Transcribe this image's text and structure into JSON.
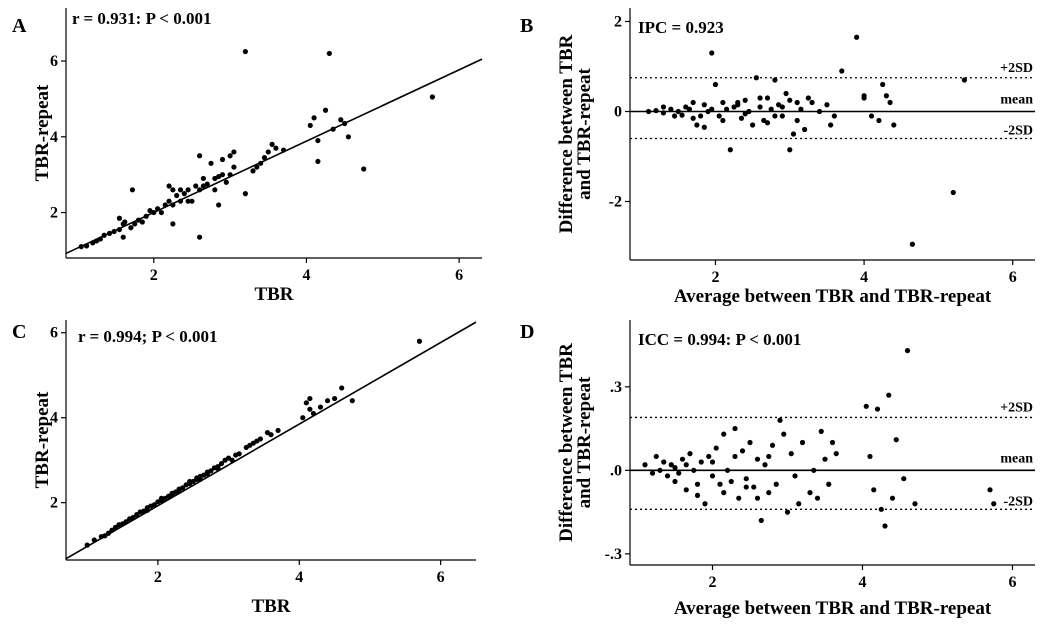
{
  "chart_data": [
    {
      "type": "scatter",
      "panel": "A",
      "annotation": "r = 0.931: P < 0.001",
      "xlabel": "TBR",
      "ylabel": "TBR-repeat",
      "xlim": [
        0.85,
        6.3
      ],
      "ylim": [
        0.8,
        7.4
      ],
      "xticks": [
        {
          "v": 2,
          "label": "2"
        },
        {
          "v": 4,
          "label": "4"
        },
        {
          "v": 6,
          "label": "6"
        }
      ],
      "yticks": [
        {
          "v": 2,
          "label": "2"
        },
        {
          "v": 4,
          "label": "4"
        },
        {
          "v": 6,
          "label": "6"
        }
      ],
      "reference_lines": [
        {
          "type": "fit",
          "x": [
            0.85,
            6.3
          ],
          "y": [
            0.92,
            6.05
          ]
        }
      ],
      "points": [
        [
          1.05,
          1.1
        ],
        [
          1.12,
          1.12
        ],
        [
          1.2,
          1.2
        ],
        [
          1.25,
          1.25
        ],
        [
          1.3,
          1.3
        ],
        [
          1.35,
          1.4
        ],
        [
          1.42,
          1.45
        ],
        [
          1.48,
          1.5
        ],
        [
          1.55,
          1.55
        ],
        [
          1.6,
          1.7
        ],
        [
          1.55,
          1.85
        ],
        [
          1.62,
          1.75
        ],
        [
          1.6,
          1.35
        ],
        [
          1.7,
          1.6
        ],
        [
          1.75,
          1.7
        ],
        [
          1.72,
          2.6
        ],
        [
          1.8,
          1.8
        ],
        [
          1.85,
          1.75
        ],
        [
          1.9,
          1.9
        ],
        [
          1.95,
          2.05
        ],
        [
          2.0,
          2.0
        ],
        [
          2.05,
          2.1
        ],
        [
          2.1,
          2.0
        ],
        [
          2.15,
          2.2
        ],
        [
          2.2,
          2.3
        ],
        [
          2.25,
          2.2
        ],
        [
          2.25,
          2.6
        ],
        [
          2.3,
          2.45
        ],
        [
          2.35,
          2.3
        ],
        [
          2.4,
          2.5
        ],
        [
          2.45,
          2.6
        ],
        [
          2.45,
          2.3
        ],
        [
          2.5,
          2.3
        ],
        [
          2.55,
          2.7
        ],
        [
          2.6,
          2.6
        ],
        [
          2.6,
          3.5
        ],
        [
          2.65,
          2.7
        ],
        [
          2.65,
          2.9
        ],
        [
          2.7,
          2.75
        ],
        [
          2.75,
          3.3
        ],
        [
          2.8,
          2.9
        ],
        [
          2.85,
          2.95
        ],
        [
          2.9,
          3.0
        ],
        [
          2.9,
          3.4
        ],
        [
          2.95,
          2.8
        ],
        [
          3.0,
          3.0
        ],
        [
          3.05,
          3.2
        ],
        [
          3.05,
          3.6
        ],
        [
          2.85,
          2.2
        ],
        [
          2.8,
          2.6
        ],
        [
          2.6,
          1.35
        ],
        [
          2.25,
          1.7
        ],
        [
          3.2,
          6.25
        ],
        [
          3.2,
          2.5
        ],
        [
          3.3,
          3.1
        ],
        [
          3.35,
          3.2
        ],
        [
          3.4,
          3.3
        ],
        [
          3.5,
          3.6
        ],
        [
          3.55,
          3.8
        ],
        [
          3.45,
          3.45
        ],
        [
          3.6,
          3.7
        ],
        [
          3.7,
          3.65
        ],
        [
          2.2,
          2.7
        ],
        [
          2.35,
          2.6
        ],
        [
          3.0,
          3.5
        ],
        [
          4.05,
          4.3
        ],
        [
          4.1,
          4.5
        ],
        [
          4.15,
          3.9
        ],
        [
          4.15,
          3.35
        ],
        [
          4.25,
          4.7
        ],
        [
          4.3,
          6.2
        ],
        [
          4.35,
          4.2
        ],
        [
          4.45,
          4.45
        ],
        [
          4.5,
          4.35
        ],
        [
          4.55,
          4.0
        ],
        [
          4.75,
          3.15
        ],
        [
          5.65,
          5.05
        ]
      ]
    },
    {
      "type": "scatter",
      "panel": "B",
      "annotation": "IPC = 0.923",
      "xlabel": "Average between TBR and TBR-repeat",
      "ylabel_lines": [
        "Difference between TBR",
        "and TBR-repeat"
      ],
      "xlim": [
        0.85,
        6.3
      ],
      "ylim": [
        -3.3,
        2.3
      ],
      "xticks": [
        {
          "v": 2,
          "label": "2"
        },
        {
          "v": 4,
          "label": "4"
        },
        {
          "v": 6,
          "label": "6"
        }
      ],
      "yticks": [
        {
          "v": 2,
          "label": "2"
        },
        {
          "v": 0,
          "label": "0"
        },
        {
          "v": -2,
          "label": "-2"
        }
      ],
      "reference_lines": [
        {
          "type": "dotted",
          "y": 0.75,
          "label": "+2SD"
        },
        {
          "type": "solid",
          "y": 0,
          "label": "mean"
        },
        {
          "type": "dotted",
          "y": -0.6,
          "label": "-2SD"
        }
      ],
      "points": [
        [
          1.1,
          0.0
        ],
        [
          1.2,
          0.02
        ],
        [
          1.3,
          -0.03
        ],
        [
          1.4,
          0.05
        ],
        [
          1.5,
          0.0
        ],
        [
          1.55,
          -0.08
        ],
        [
          1.6,
          0.1
        ],
        [
          1.65,
          0.05
        ],
        [
          1.7,
          0.2
        ],
        [
          1.75,
          -0.3
        ],
        [
          1.8,
          -0.1
        ],
        [
          1.85,
          0.15
        ],
        [
          1.9,
          0.0
        ],
        [
          1.95,
          1.3
        ],
        [
          1.95,
          0.05
        ],
        [
          2.0,
          0.6
        ],
        [
          2.05,
          -0.1
        ],
        [
          2.1,
          0.2
        ],
        [
          2.15,
          0.05
        ],
        [
          2.2,
          -0.85
        ],
        [
          2.25,
          0.1
        ],
        [
          2.3,
          0.2
        ],
        [
          2.35,
          -0.15
        ],
        [
          2.4,
          0.25
        ],
        [
          2.45,
          0.0
        ],
        [
          2.5,
          -0.3
        ],
        [
          2.55,
          0.75
        ],
        [
          2.6,
          0.1
        ],
        [
          2.65,
          -0.2
        ],
        [
          2.7,
          0.3
        ],
        [
          2.75,
          0.05
        ],
        [
          2.8,
          0.7
        ],
        [
          2.85,
          0.15
        ],
        [
          2.9,
          -0.1
        ],
        [
          2.95,
          0.4
        ],
        [
          3.0,
          -0.85
        ],
        [
          3.05,
          -0.5
        ],
        [
          3.1,
          0.2
        ],
        [
          3.15,
          0.05
        ],
        [
          3.2,
          -0.4
        ],
        [
          3.25,
          0.3
        ],
        [
          3.3,
          0.2
        ],
        [
          3.4,
          0.0
        ],
        [
          3.5,
          0.15
        ],
        [
          3.55,
          -0.3
        ],
        [
          3.6,
          -0.1
        ],
        [
          3.7,
          0.9
        ],
        [
          3.9,
          1.65
        ],
        [
          4.0,
          0.35
        ],
        [
          4.0,
          0.3
        ],
        [
          4.1,
          -0.1
        ],
        [
          4.2,
          -0.2
        ],
        [
          4.25,
          0.6
        ],
        [
          4.3,
          0.35
        ],
        [
          4.35,
          0.2
        ],
        [
          4.4,
          -0.3
        ],
        [
          4.65,
          -2.95
        ],
        [
          5.2,
          -1.8
        ],
        [
          5.35,
          0.7
        ],
        [
          1.3,
          0.1
        ],
        [
          1.45,
          -0.1
        ],
        [
          1.7,
          -0.15
        ],
        [
          1.85,
          -0.35
        ],
        [
          2.1,
          -0.2
        ],
        [
          2.3,
          0.15
        ],
        [
          2.4,
          -0.05
        ],
        [
          2.6,
          0.3
        ],
        [
          2.7,
          -0.25
        ],
        [
          2.8,
          -0.1
        ],
        [
          2.9,
          0.1
        ],
        [
          3.0,
          0.25
        ],
        [
          3.1,
          -0.2
        ]
      ]
    },
    {
      "type": "scatter",
      "panel": "C",
      "annotation": "r = 0.994; P < 0.001",
      "xlabel": "TBR",
      "ylabel": "TBR-repeat",
      "xlim": [
        0.7,
        6.5
      ],
      "ylim": [
        0.65,
        6.3
      ],
      "xticks": [
        {
          "v": 2,
          "label": "2"
        },
        {
          "v": 4,
          "label": "4"
        },
        {
          "v": 6,
          "label": "6"
        }
      ],
      "yticks": [
        {
          "v": 2,
          "label": "2"
        },
        {
          "v": 4,
          "label": "4"
        },
        {
          "v": 6,
          "label": "6"
        }
      ],
      "reference_lines": [
        {
          "type": "fit",
          "x": [
            0.7,
            6.5
          ],
          "y": [
            0.68,
            6.25
          ]
        }
      ],
      "points": [
        [
          1.0,
          1.0
        ],
        [
          1.1,
          1.12
        ],
        [
          1.2,
          1.2
        ],
        [
          1.3,
          1.28
        ],
        [
          1.35,
          1.35
        ],
        [
          1.4,
          1.42
        ],
        [
          1.5,
          1.5
        ],
        [
          1.55,
          1.55
        ],
        [
          1.6,
          1.62
        ],
        [
          1.65,
          1.65
        ],
        [
          1.7,
          1.72
        ],
        [
          1.75,
          1.78
        ],
        [
          1.8,
          1.8
        ],
        [
          1.85,
          1.88
        ],
        [
          1.9,
          1.92
        ],
        [
          1.95,
          1.95
        ],
        [
          2.0,
          2.02
        ],
        [
          2.05,
          2.05
        ],
        [
          2.1,
          2.1
        ],
        [
          2.15,
          2.15
        ],
        [
          2.2,
          2.22
        ],
        [
          2.25,
          2.25
        ],
        [
          2.3,
          2.28
        ],
        [
          2.35,
          2.35
        ],
        [
          2.4,
          2.42
        ],
        [
          2.45,
          2.45
        ],
        [
          2.5,
          2.5
        ],
        [
          2.55,
          2.55
        ],
        [
          2.6,
          2.62
        ],
        [
          2.65,
          2.65
        ],
        [
          2.7,
          2.72
        ],
        [
          2.75,
          2.75
        ],
        [
          2.8,
          2.82
        ],
        [
          2.85,
          2.85
        ],
        [
          2.9,
          2.92
        ],
        [
          2.95,
          3.0
        ],
        [
          3.0,
          3.05
        ],
        [
          3.05,
          3.0
        ],
        [
          3.15,
          3.15
        ],
        [
          3.25,
          3.3
        ],
        [
          3.3,
          3.35
        ],
        [
          3.4,
          3.45
        ],
        [
          3.45,
          3.5
        ],
        [
          3.55,
          3.65
        ],
        [
          3.6,
          3.6
        ],
        [
          3.7,
          3.7
        ],
        [
          4.05,
          4.0
        ],
        [
          4.1,
          4.35
        ],
        [
          4.15,
          4.2
        ],
        [
          4.2,
          4.1
        ],
        [
          4.3,
          4.25
        ],
        [
          4.4,
          4.4
        ],
        [
          4.5,
          4.45
        ],
        [
          4.6,
          4.7
        ],
        [
          4.75,
          4.4
        ],
        [
          5.7,
          5.8
        ],
        [
          1.25,
          1.22
        ],
        [
          1.45,
          1.48
        ],
        [
          1.85,
          1.82
        ],
        [
          2.05,
          2.1
        ],
        [
          2.2,
          2.18
        ],
        [
          2.3,
          2.32
        ],
        [
          2.45,
          2.5
        ],
        [
          2.55,
          2.58
        ],
        [
          2.6,
          2.55
        ],
        [
          2.7,
          2.68
        ],
        [
          2.85,
          2.8
        ],
        [
          3.1,
          3.12
        ],
        [
          3.35,
          3.4
        ],
        [
          4.15,
          4.45
        ]
      ]
    },
    {
      "type": "scatter",
      "panel": "D",
      "annotation": "ICC = 0.994: P < 0.001",
      "xlabel": "Average between TBR and TBR-repeat",
      "ylabel_lines": [
        "Difference between TBR",
        "and TBR-repeat"
      ],
      "xlim": [
        0.9,
        6.3
      ],
      "ylim": [
        -0.34,
        0.54
      ],
      "xticks": [
        {
          "v": 2,
          "label": "2"
        },
        {
          "v": 4,
          "label": "4"
        },
        {
          "v": 6,
          "label": "6"
        }
      ],
      "yticks": [
        {
          "v": 0.3,
          "label": ".3"
        },
        {
          "v": 0.0,
          "label": ".0"
        },
        {
          "v": -0.3,
          "label": "-.3"
        }
      ],
      "reference_lines": [
        {
          "type": "dotted",
          "y": 0.19,
          "label": "+2SD"
        },
        {
          "type": "solid",
          "y": 0,
          "label": "mean"
        },
        {
          "type": "dotted",
          "y": -0.14,
          "label": "-2SD"
        }
      ],
      "points": [
        [
          1.1,
          0.02
        ],
        [
          1.2,
          -0.01
        ],
        [
          1.25,
          0.05
        ],
        [
          1.3,
          0.0
        ],
        [
          1.35,
          0.03
        ],
        [
          1.4,
          -0.02
        ],
        [
          1.45,
          0.02
        ],
        [
          1.5,
          -0.04
        ],
        [
          1.55,
          -0.01
        ],
        [
          1.6,
          0.04
        ],
        [
          1.65,
          -0.07
        ],
        [
          1.7,
          0.06
        ],
        [
          1.75,
          0.0
        ],
        [
          1.8,
          -0.09
        ],
        [
          1.85,
          0.03
        ],
        [
          1.9,
          -0.12
        ],
        [
          1.95,
          0.05
        ],
        [
          2.0,
          -0.02
        ],
        [
          2.05,
          0.08
        ],
        [
          2.1,
          -0.05
        ],
        [
          2.15,
          0.13
        ],
        [
          2.2,
          0.0
        ],
        [
          2.25,
          -0.04
        ],
        [
          2.3,
          0.15
        ],
        [
          2.35,
          -0.1
        ],
        [
          2.4,
          0.07
        ],
        [
          2.45,
          -0.03
        ],
        [
          2.5,
          0.1
        ],
        [
          2.55,
          -0.06
        ],
        [
          2.6,
          0.04
        ],
        [
          2.65,
          -0.18
        ],
        [
          2.7,
          0.02
        ],
        [
          2.75,
          -0.08
        ],
        [
          2.8,
          0.09
        ],
        [
          2.85,
          -0.05
        ],
        [
          2.9,
          0.18
        ],
        [
          2.95,
          0.13
        ],
        [
          3.0,
          -0.15
        ],
        [
          3.05,
          0.06
        ],
        [
          3.1,
          -0.02
        ],
        [
          3.2,
          0.1
        ],
        [
          3.3,
          -0.08
        ],
        [
          3.4,
          -0.1
        ],
        [
          3.45,
          0.14
        ],
        [
          3.5,
          0.04
        ],
        [
          3.55,
          -0.05
        ],
        [
          3.6,
          0.1
        ],
        [
          3.65,
          0.06
        ],
        [
          4.05,
          0.23
        ],
        [
          4.1,
          0.05
        ],
        [
          4.15,
          -0.07
        ],
        [
          4.2,
          0.22
        ],
        [
          4.25,
          -0.14
        ],
        [
          4.3,
          -0.2
        ],
        [
          4.35,
          0.27
        ],
        [
          4.4,
          -0.1
        ],
        [
          4.45,
          0.11
        ],
        [
          4.55,
          -0.03
        ],
        [
          4.6,
          0.43
        ],
        [
          4.7,
          -0.12
        ],
        [
          5.7,
          -0.07
        ],
        [
          5.75,
          -0.12
        ],
        [
          1.5,
          0.01
        ],
        [
          1.65,
          0.02
        ],
        [
          1.8,
          -0.05
        ],
        [
          2.0,
          0.03
        ],
        [
          2.15,
          -0.08
        ],
        [
          2.3,
          0.05
        ],
        [
          2.45,
          -0.06
        ],
        [
          2.6,
          -0.1
        ],
        [
          2.75,
          0.05
        ],
        [
          3.15,
          -0.12
        ],
        [
          3.35,
          0.0
        ]
      ]
    }
  ]
}
